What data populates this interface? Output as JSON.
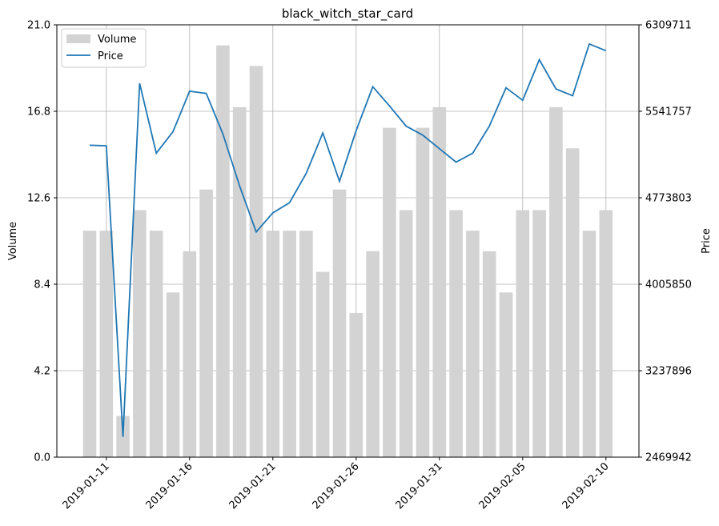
{
  "chart_data": {
    "type": "bar+line",
    "title": "black_witch_star_card",
    "xlabel": "",
    "ylabel_left": "Volume",
    "ylabel_right": "Price",
    "grid": true,
    "legend_position": "upper-left",
    "x_tick_labels": [
      "2019-01-11",
      "2019-01-16",
      "2019-01-21",
      "2019-01-26",
      "2019-01-31",
      "2019-02-05",
      "2019-02-10"
    ],
    "y_left_ticks": [
      "0.0",
      "4.2",
      "8.4",
      "12.6",
      "16.8",
      "21.0"
    ],
    "y_right_ticks": [
      "2469942",
      "3237896",
      "4005850",
      "4773803",
      "5541757",
      "6309711"
    ],
    "ylim_left": [
      0,
      21
    ],
    "ylim_right": [
      2469942,
      6309711
    ],
    "dates": [
      "2019-01-10",
      "2019-01-11",
      "2019-01-12",
      "2019-01-13",
      "2019-01-14",
      "2019-01-15",
      "2019-01-16",
      "2019-01-17",
      "2019-01-18",
      "2019-01-19",
      "2019-01-20",
      "2019-01-21",
      "2019-01-22",
      "2019-01-23",
      "2019-01-24",
      "2019-01-25",
      "2019-01-26",
      "2019-01-27",
      "2019-01-28",
      "2019-01-29",
      "2019-01-30",
      "2019-01-31",
      "2019-02-01",
      "2019-02-02",
      "2019-02-03",
      "2019-02-04",
      "2019-02-05",
      "2019-02-06",
      "2019-02-07",
      "2019-02-08",
      "2019-02-09",
      "2019-02-10"
    ],
    "series": [
      {
        "name": "Volume",
        "kind": "bar",
        "axis": "left",
        "color": "#d3d3d3",
        "values": [
          11,
          11,
          2,
          12,
          11,
          8,
          10,
          13,
          20,
          17,
          19,
          11,
          11,
          11,
          9,
          13,
          7,
          10,
          16,
          12,
          16,
          17,
          12,
          11,
          10,
          8,
          12,
          12,
          17,
          15,
          11,
          12
        ]
      },
      {
        "name": "Price",
        "kind": "line",
        "axis": "right",
        "color": "#1f77b4",
        "values": [
          5240000,
          5235000,
          2650000,
          5790000,
          5170000,
          5360000,
          5720000,
          5700000,
          5340000,
          4880000,
          4470000,
          4640000,
          4730000,
          4990000,
          5350000,
          4920000,
          5370000,
          5760000,
          5590000,
          5410000,
          5330000,
          5210000,
          5090000,
          5170000,
          5410000,
          5750000,
          5640000,
          6000000,
          5740000,
          5680000,
          6140000,
          6080000
        ]
      }
    ]
  }
}
